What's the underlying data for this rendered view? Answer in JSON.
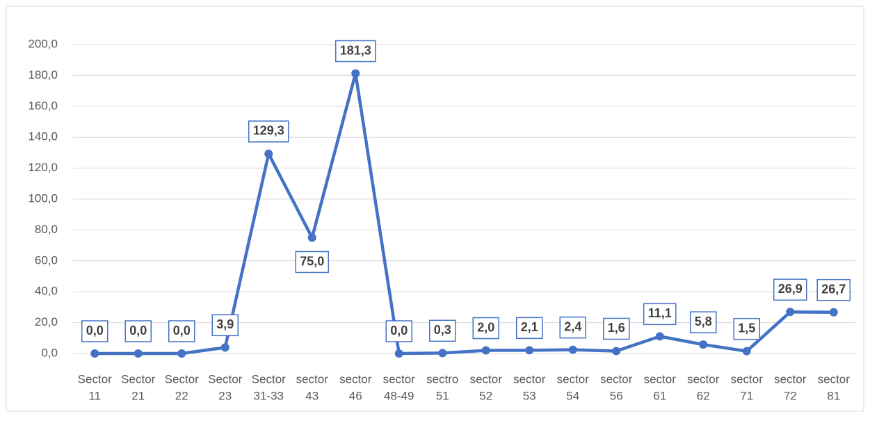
{
  "chart_data": {
    "type": "line",
    "categories": [
      [
        "Sector",
        "11"
      ],
      [
        "Sector",
        "21"
      ],
      [
        "Sector",
        "22"
      ],
      [
        "Sector",
        "23"
      ],
      [
        "Sector",
        "31-33"
      ],
      [
        "sector",
        "43"
      ],
      [
        "sector",
        "46"
      ],
      [
        "sector",
        "48-49"
      ],
      [
        "sectro",
        "51"
      ],
      [
        "sector",
        "52"
      ],
      [
        "sector",
        "53"
      ],
      [
        "sector",
        "54"
      ],
      [
        "sector",
        "56"
      ],
      [
        "sector",
        "61"
      ],
      [
        "sector",
        "62"
      ],
      [
        "sector",
        "71"
      ],
      [
        "sector",
        "72"
      ],
      [
        "sector",
        "81"
      ]
    ],
    "series": [
      {
        "color": "#4472c4",
        "values": [
          0,
          0,
          0,
          3.9,
          129.3,
          75,
          181.3,
          0,
          0.3,
          2.0,
          2.1,
          2.4,
          1.6,
          11.1,
          5.8,
          1.5,
          26.9,
          26.7
        ],
        "value_labels": [
          "0,0",
          "0,0",
          "0,0",
          "3,9",
          "129,3",
          "75,0",
          "181,3",
          "0,0",
          "0,3",
          "2,0",
          "2,1",
          "2,4",
          "1,6",
          "11,1",
          "5,8",
          "1,5",
          "26,9",
          "26,7"
        ]
      }
    ],
    "ylim": [
      0,
      200
    ],
    "yticks": [
      {
        "value": 0,
        "label": "0,0"
      },
      {
        "value": 20,
        "label": "20,0"
      },
      {
        "value": 40,
        "label": "40,0"
      },
      {
        "value": 60,
        "label": "60,0"
      },
      {
        "value": 80,
        "label": "80,0"
      },
      {
        "value": 100,
        "label": "100,0"
      },
      {
        "value": 120,
        "label": "120,0"
      },
      {
        "value": 140,
        "label": "140,0"
      },
      {
        "value": 160,
        "label": "160,0"
      },
      {
        "value": 180,
        "label": "180,0"
      },
      {
        "value": 200,
        "label": "200,0"
      }
    ],
    "grid": true
  }
}
